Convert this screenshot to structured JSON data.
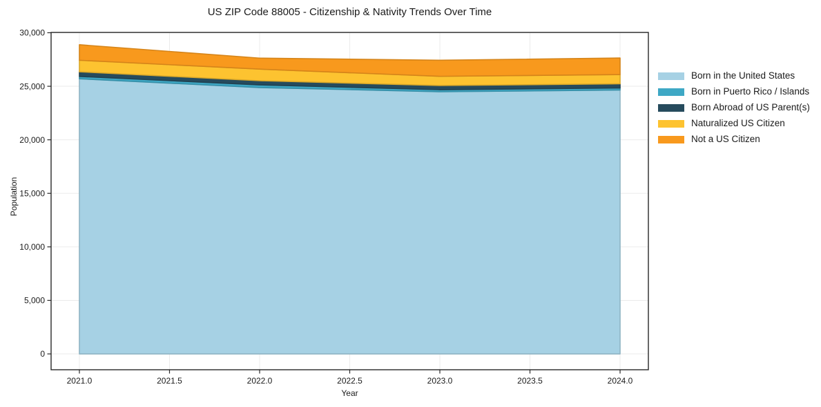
{
  "chart_data": {
    "type": "area",
    "stacked": true,
    "title": "US ZIP Code 88005 - Citizenship & Nativity Trends Over Time",
    "xlabel": "Year",
    "ylabel": "Population",
    "x": [
      2021,
      2022,
      2023,
      2024
    ],
    "series": [
      {
        "name": "Born in the United States",
        "color": "#a6d1e4",
        "values": [
          25700,
          24880,
          24490,
          24650
        ]
      },
      {
        "name": "Born in Puerto Rico / Islands",
        "color": "#3ea8c5",
        "values": [
          220,
          250,
          190,
          190
        ]
      },
      {
        "name": "Born Abroad of US Parent(s)",
        "color": "#264b5d",
        "values": [
          430,
          390,
          390,
          390
        ]
      },
      {
        "name": "Naturalized US Citizen",
        "color": "#fdc330",
        "values": [
          1080,
          1080,
          860,
          860
        ]
      },
      {
        "name": "Not a US Citizen",
        "color": "#f8991d",
        "values": [
          1450,
          1030,
          1500,
          1550
        ]
      }
    ],
    "xlim": [
      2020.843,
      2024.157
    ],
    "ylim": [
      -1480,
      30030
    ],
    "xtick_values": [
      2021.0,
      2021.5,
      2022.0,
      2022.5,
      2023.0,
      2023.5,
      2024.0
    ],
    "xtick_labels": [
      "2021.0",
      "2021.5",
      "2022.0",
      "2022.5",
      "2023.0",
      "2023.5",
      "2024.0"
    ],
    "ytick_values": [
      0,
      5000,
      10000,
      15000,
      20000,
      25000,
      30000
    ],
    "ytick_labels": [
      "0",
      "5,000",
      "10,000",
      "15,000",
      "20,000",
      "25,000",
      "30,000"
    ],
    "grid": true,
    "grid_color": "#ebebeb",
    "spine_color": "#262626",
    "legend_position": "right-outside"
  }
}
